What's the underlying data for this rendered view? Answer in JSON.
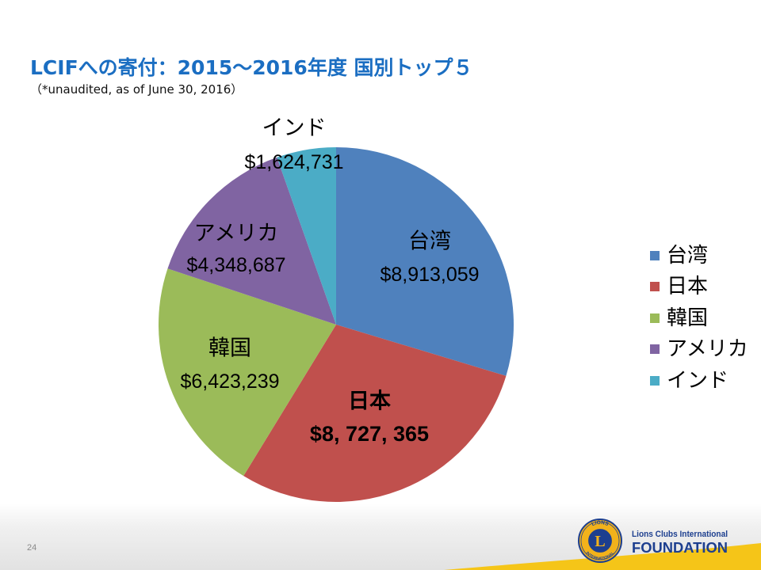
{
  "chart_data": {
    "type": "pie",
    "title": "LCIFへの寄付：2015～2016年度 国別トップ５",
    "subtitle": "（*unaudited, as of June 30, 2016）",
    "categories": [
      "台湾",
      "日本",
      "韓国",
      "アメリカ",
      "インド"
    ],
    "values": [
      8913059,
      8727365,
      6423239,
      4348687,
      1624731
    ],
    "data_labels": [
      "$8,913,059",
      "$8, 727, 365",
      "$6,423,239",
      "$4,348,687",
      "$1,624,731"
    ],
    "colors": [
      "#4F81BD",
      "#C0504D",
      "#9BBB59",
      "#8064A2",
      "#4BACC6"
    ],
    "legend_position": "right"
  },
  "slide": {
    "page_number": "24"
  },
  "footer": {
    "logo_ring_top": "LIONS",
    "logo_ring_bottom": "INTERNATIONAL",
    "logo_letter": "L",
    "brand_line1": "Lions Clubs International",
    "brand_line2": "FOUNDATION",
    "brand_color": "#1D3F8F",
    "accent_color": "#F2B21B"
  }
}
